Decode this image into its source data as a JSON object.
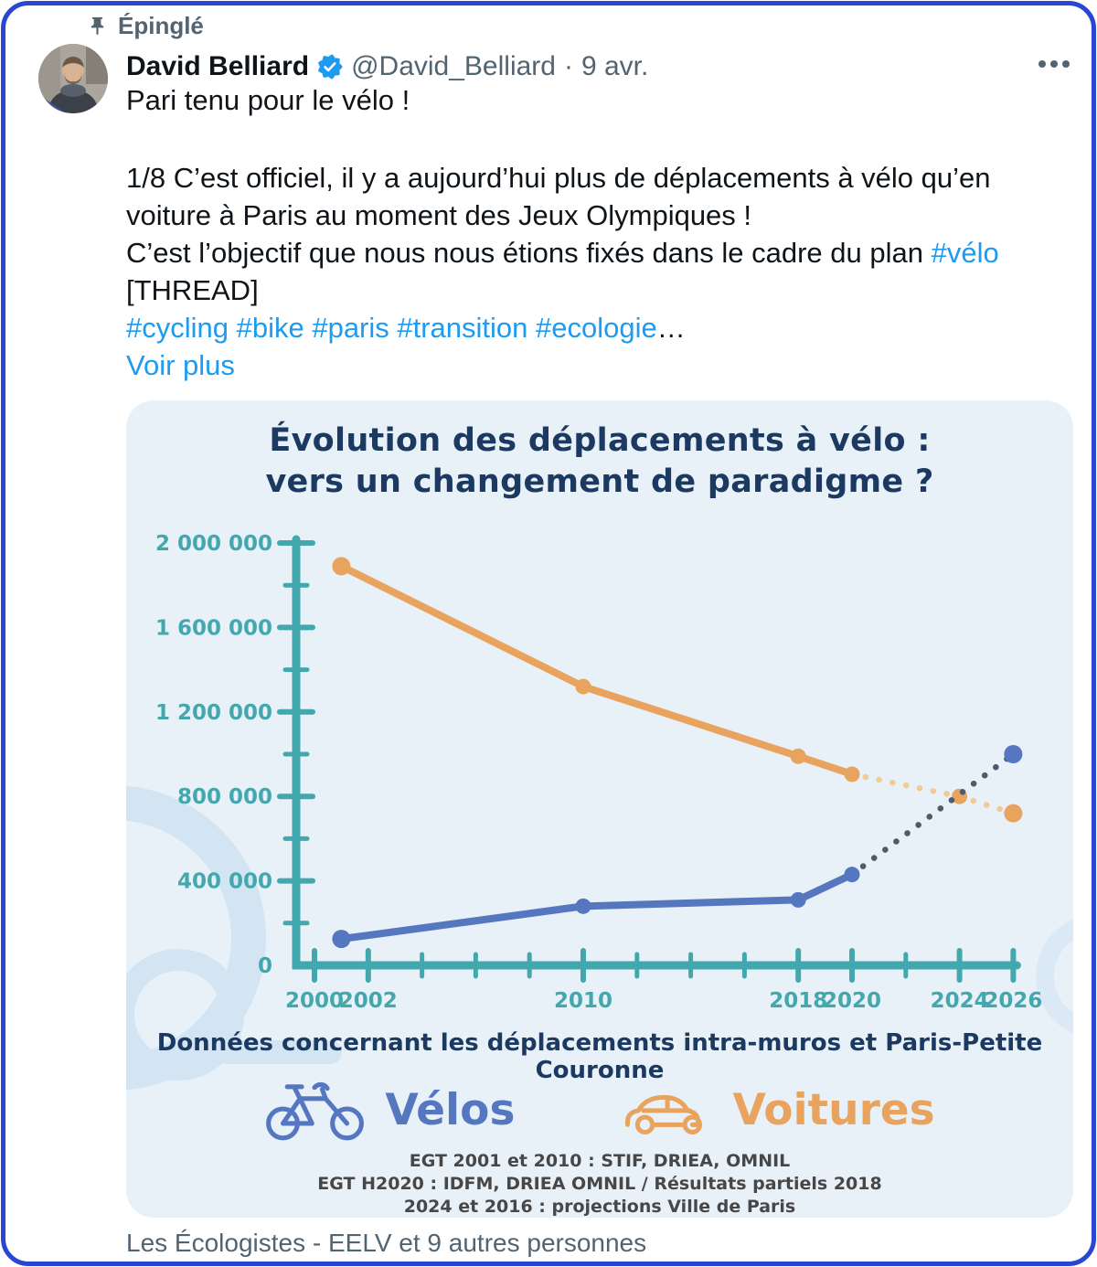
{
  "tweet": {
    "pinned_label": "Épinglé",
    "author": "David Belliard",
    "handle": "@David_Belliard",
    "separator": "·",
    "date": "9 avr.",
    "intro": "Pari tenu pour le vélo !",
    "body1": "1/8 C’est officiel, il y a aujourd’hui plus de déplacements à vélo qu’en voiture à Paris au moment des Jeux Olympiques !",
    "body2_prefix": "C’est l’objectif que nous nous étions fixés dans le cadre du plan ",
    "body2_link": "#vélo",
    "body3": "[THREAD]",
    "hashtags": "#cycling #bike #paris #transition #ecologie",
    "ellipsis": "…",
    "see_more": "Voir plus",
    "footer": "Les Écologistes - EELV et 9 autres personnes"
  },
  "colors": {
    "card_border": "#2946d3",
    "link_blue": "#1d9bf0",
    "text_primary": "#0f1419",
    "text_secondary": "#536471",
    "chart_bg": "#e9f1f8",
    "chart_navy": "#1c3a61",
    "axis_teal": "#43a8ae",
    "bikes_blue": "#5577bf",
    "cars_orange": "#e8a35e",
    "projection_dark": "#4d5c6b",
    "projection_light_orange": "#f1cb97",
    "watermark": "#d3e4f2"
  },
  "chart_data": {
    "type": "line",
    "title_line1": "Évolution des déplacements à vélo :",
    "title_line2": "vers un changement de paradigme ?",
    "caption": "Données concernant les déplacements intra-muros et Paris-Petite Couronne",
    "sources": [
      "EGT 2001 et 2010 :  STIF, DRIEA, OMNIL",
      "EGT H2020 :  IDFM, DRIEA OMNIL / Résultats partiels 2018",
      "2024 et 2016 : projections Ville de Paris"
    ],
    "xlabel": "",
    "ylabel": "",
    "xlim": [
      2000,
      2026
    ],
    "ylim": [
      0,
      2000000
    ],
    "grid": false,
    "legend_position": "bottom",
    "x_ticks": [
      {
        "year": 2000,
        "label": "2000"
      },
      {
        "year": 2002,
        "label": "2002"
      },
      {
        "year": 2004
      },
      {
        "year": 2006
      },
      {
        "year": 2008
      },
      {
        "year": 2010,
        "label": "2010"
      },
      {
        "year": 2012
      },
      {
        "year": 2014
      },
      {
        "year": 2016
      },
      {
        "year": 2018,
        "label": "2018"
      },
      {
        "year": 2020,
        "label": "2020"
      },
      {
        "year": 2022
      },
      {
        "year": 2024,
        "label": "2024"
      },
      {
        "year": 2026,
        "label": "2026"
      }
    ],
    "y_ticks": [
      {
        "value": 2000000,
        "label": "2 000 000"
      },
      {
        "value": 1800000
      },
      {
        "value": 1600000,
        "label": "1 600 000"
      },
      {
        "value": 1400000
      },
      {
        "value": 1200000,
        "label": "1 200 000"
      },
      {
        "value": 1000000
      },
      {
        "value": 800000,
        "label": "800 000"
      },
      {
        "value": 600000
      },
      {
        "value": 400000,
        "label": "400 000"
      },
      {
        "value": 200000
      },
      {
        "value": 0,
        "label": "0"
      }
    ],
    "series": [
      {
        "name": "Voitures",
        "color": "#e8a35e",
        "projection_color": "#f1cb97",
        "solid_until": 2020,
        "points": [
          {
            "year": 2001,
            "value": 1890000
          },
          {
            "year": 2010,
            "value": 1320000
          },
          {
            "year": 2018,
            "value": 990000
          },
          {
            "year": 2020,
            "value": 905000
          },
          {
            "year": 2024,
            "value": 800000
          },
          {
            "year": 2026,
            "value": 720000
          }
        ]
      },
      {
        "name": "Vélos",
        "color": "#5577bf",
        "projection_color": "#4d5c6b",
        "solid_until": 2020,
        "points": [
          {
            "year": 2001,
            "value": 125000
          },
          {
            "year": 2010,
            "value": 280000
          },
          {
            "year": 2018,
            "value": 310000
          },
          {
            "year": 2020,
            "value": 430000
          },
          {
            "year": 2026,
            "value": 1000000
          }
        ]
      }
    ],
    "legend": [
      {
        "label": "Vélos",
        "color": "#5577bf",
        "icon": "bicycle-icon"
      },
      {
        "label": "Voitures",
        "color": "#e8a35e",
        "icon": "car-icon"
      }
    ]
  }
}
